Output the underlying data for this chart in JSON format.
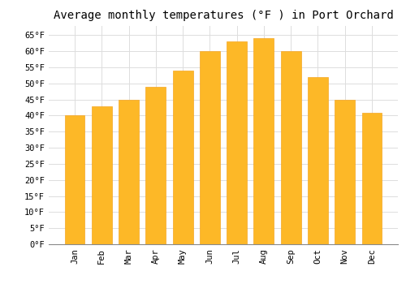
{
  "title": "Average monthly temperatures (°F ) in Port Orchard",
  "months": [
    "Jan",
    "Feb",
    "Mar",
    "Apr",
    "May",
    "Jun",
    "Jul",
    "Aug",
    "Sep",
    "Oct",
    "Nov",
    "Dec"
  ],
  "values": [
    40,
    43,
    45,
    49,
    54,
    60,
    63,
    64,
    60,
    52,
    45,
    41
  ],
  "bar_color": "#FDB827",
  "bar_edge_color": "#F5A623",
  "ylim": [
    0,
    68
  ],
  "yticks": [
    0,
    5,
    10,
    15,
    20,
    25,
    30,
    35,
    40,
    45,
    50,
    55,
    60,
    65
  ],
  "background_color": "#FFFFFF",
  "grid_color": "#DDDDDD",
  "title_fontsize": 10,
  "tick_fontsize": 7.5,
  "font_family": "monospace"
}
